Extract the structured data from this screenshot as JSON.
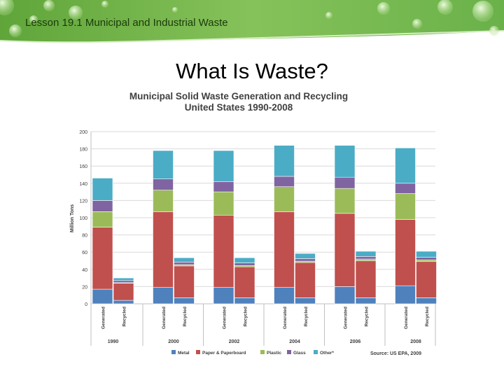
{
  "header": {
    "lesson_title": "Lesson 19.1 Municipal and Industrial Waste"
  },
  "slide": {
    "title": "What Is Waste?"
  },
  "chart_data": {
    "type": "bar",
    "stacked": true,
    "title": "Municipal Solid Waste Generation and Recycling",
    "subtitle": "United States 1990-2008",
    "ylabel": "Million Tons",
    "xlabel": "",
    "ylim": [
      0,
      200
    ],
    "yticks": [
      0,
      20,
      40,
      60,
      80,
      100,
      120,
      140,
      160,
      180,
      200
    ],
    "grid": true,
    "years": [
      "1990",
      "2000",
      "2002",
      "2004",
      "2006",
      "2008"
    ],
    "bar_labels": [
      "Generated",
      "Recycled"
    ],
    "categories": [
      "1990 Generated",
      "1990 Recycled",
      "2000 Generated",
      "2000 Recycled",
      "2002 Generated",
      "2002 Recycled",
      "2004 Generated",
      "2004 Recycled",
      "2006 Generated",
      "2006 Recycled",
      "2008 Generated",
      "2008 Recycled"
    ],
    "series": [
      {
        "name": "Metal",
        "color": "#4f81bd",
        "values": [
          17,
          4,
          19,
          7,
          19,
          7,
          19,
          7,
          20,
          7,
          21,
          7
        ]
      },
      {
        "name": "Paper & Paperboard",
        "color": "#c0504d",
        "values": [
          72,
          20,
          88,
          37,
          84,
          36,
          88,
          41,
          85,
          43,
          77,
          42
        ]
      },
      {
        "name": "Plastic",
        "color": "#9bbb59",
        "values": [
          18,
          0.5,
          25,
          1.5,
          27,
          1.5,
          29,
          1.5,
          29,
          2,
          30,
          2
        ]
      },
      {
        "name": "Glass",
        "color": "#8064a2",
        "values": [
          13,
          2.5,
          13,
          3,
          12,
          3,
          12,
          3,
          13,
          3,
          12,
          3
        ]
      },
      {
        "name": "Other*",
        "color": "#4bacc6",
        "values": [
          26,
          3,
          33,
          5,
          36,
          6,
          36,
          6,
          37,
          6,
          41,
          7
        ]
      }
    ],
    "legend_position": "bottom",
    "source": "Source: US EPA, 2009"
  }
}
